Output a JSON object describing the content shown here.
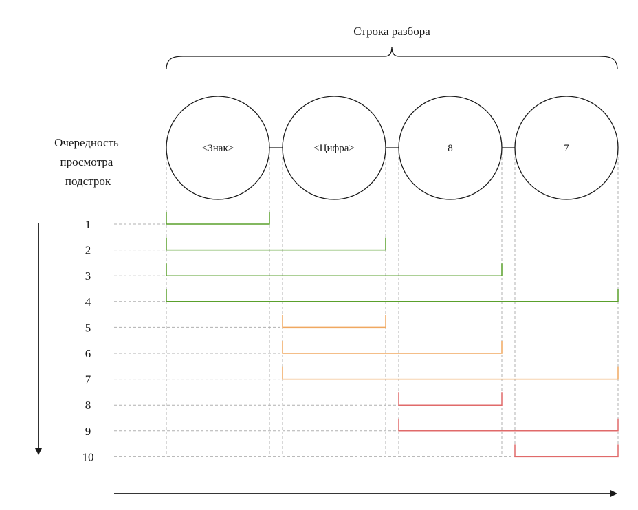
{
  "title": "Строка разбора",
  "side_label": [
    "Очередность",
    "просмотра",
    "подстрок"
  ],
  "nodes": [
    {
      "label": "<Знак>"
    },
    {
      "label": "<Цифра>"
    },
    {
      "label": "8"
    },
    {
      "label": "7"
    }
  ],
  "colors": {
    "green": "#5aa02c",
    "orange": "#f0a860",
    "red": "#e06a6a",
    "guide": "#b0b0b0",
    "stroke": "#1a1a1a"
  },
  "rows": [
    {
      "number": "1",
      "start": 0,
      "end": 0,
      "color": "green"
    },
    {
      "number": "2",
      "start": 0,
      "end": 1,
      "color": "green"
    },
    {
      "number": "3",
      "start": 0,
      "end": 2,
      "color": "green"
    },
    {
      "number": "4",
      "start": 0,
      "end": 3,
      "color": "green"
    },
    {
      "number": "5",
      "start": 1,
      "end": 1,
      "color": "orange"
    },
    {
      "number": "6",
      "start": 1,
      "end": 2,
      "color": "orange"
    },
    {
      "number": "7",
      "start": 1,
      "end": 3,
      "color": "orange"
    },
    {
      "number": "8",
      "start": 2,
      "end": 2,
      "color": "red"
    },
    {
      "number": "9",
      "start": 2,
      "end": 3,
      "color": "red"
    },
    {
      "number": "10",
      "start": 3,
      "end": 3,
      "color": "red"
    }
  ]
}
